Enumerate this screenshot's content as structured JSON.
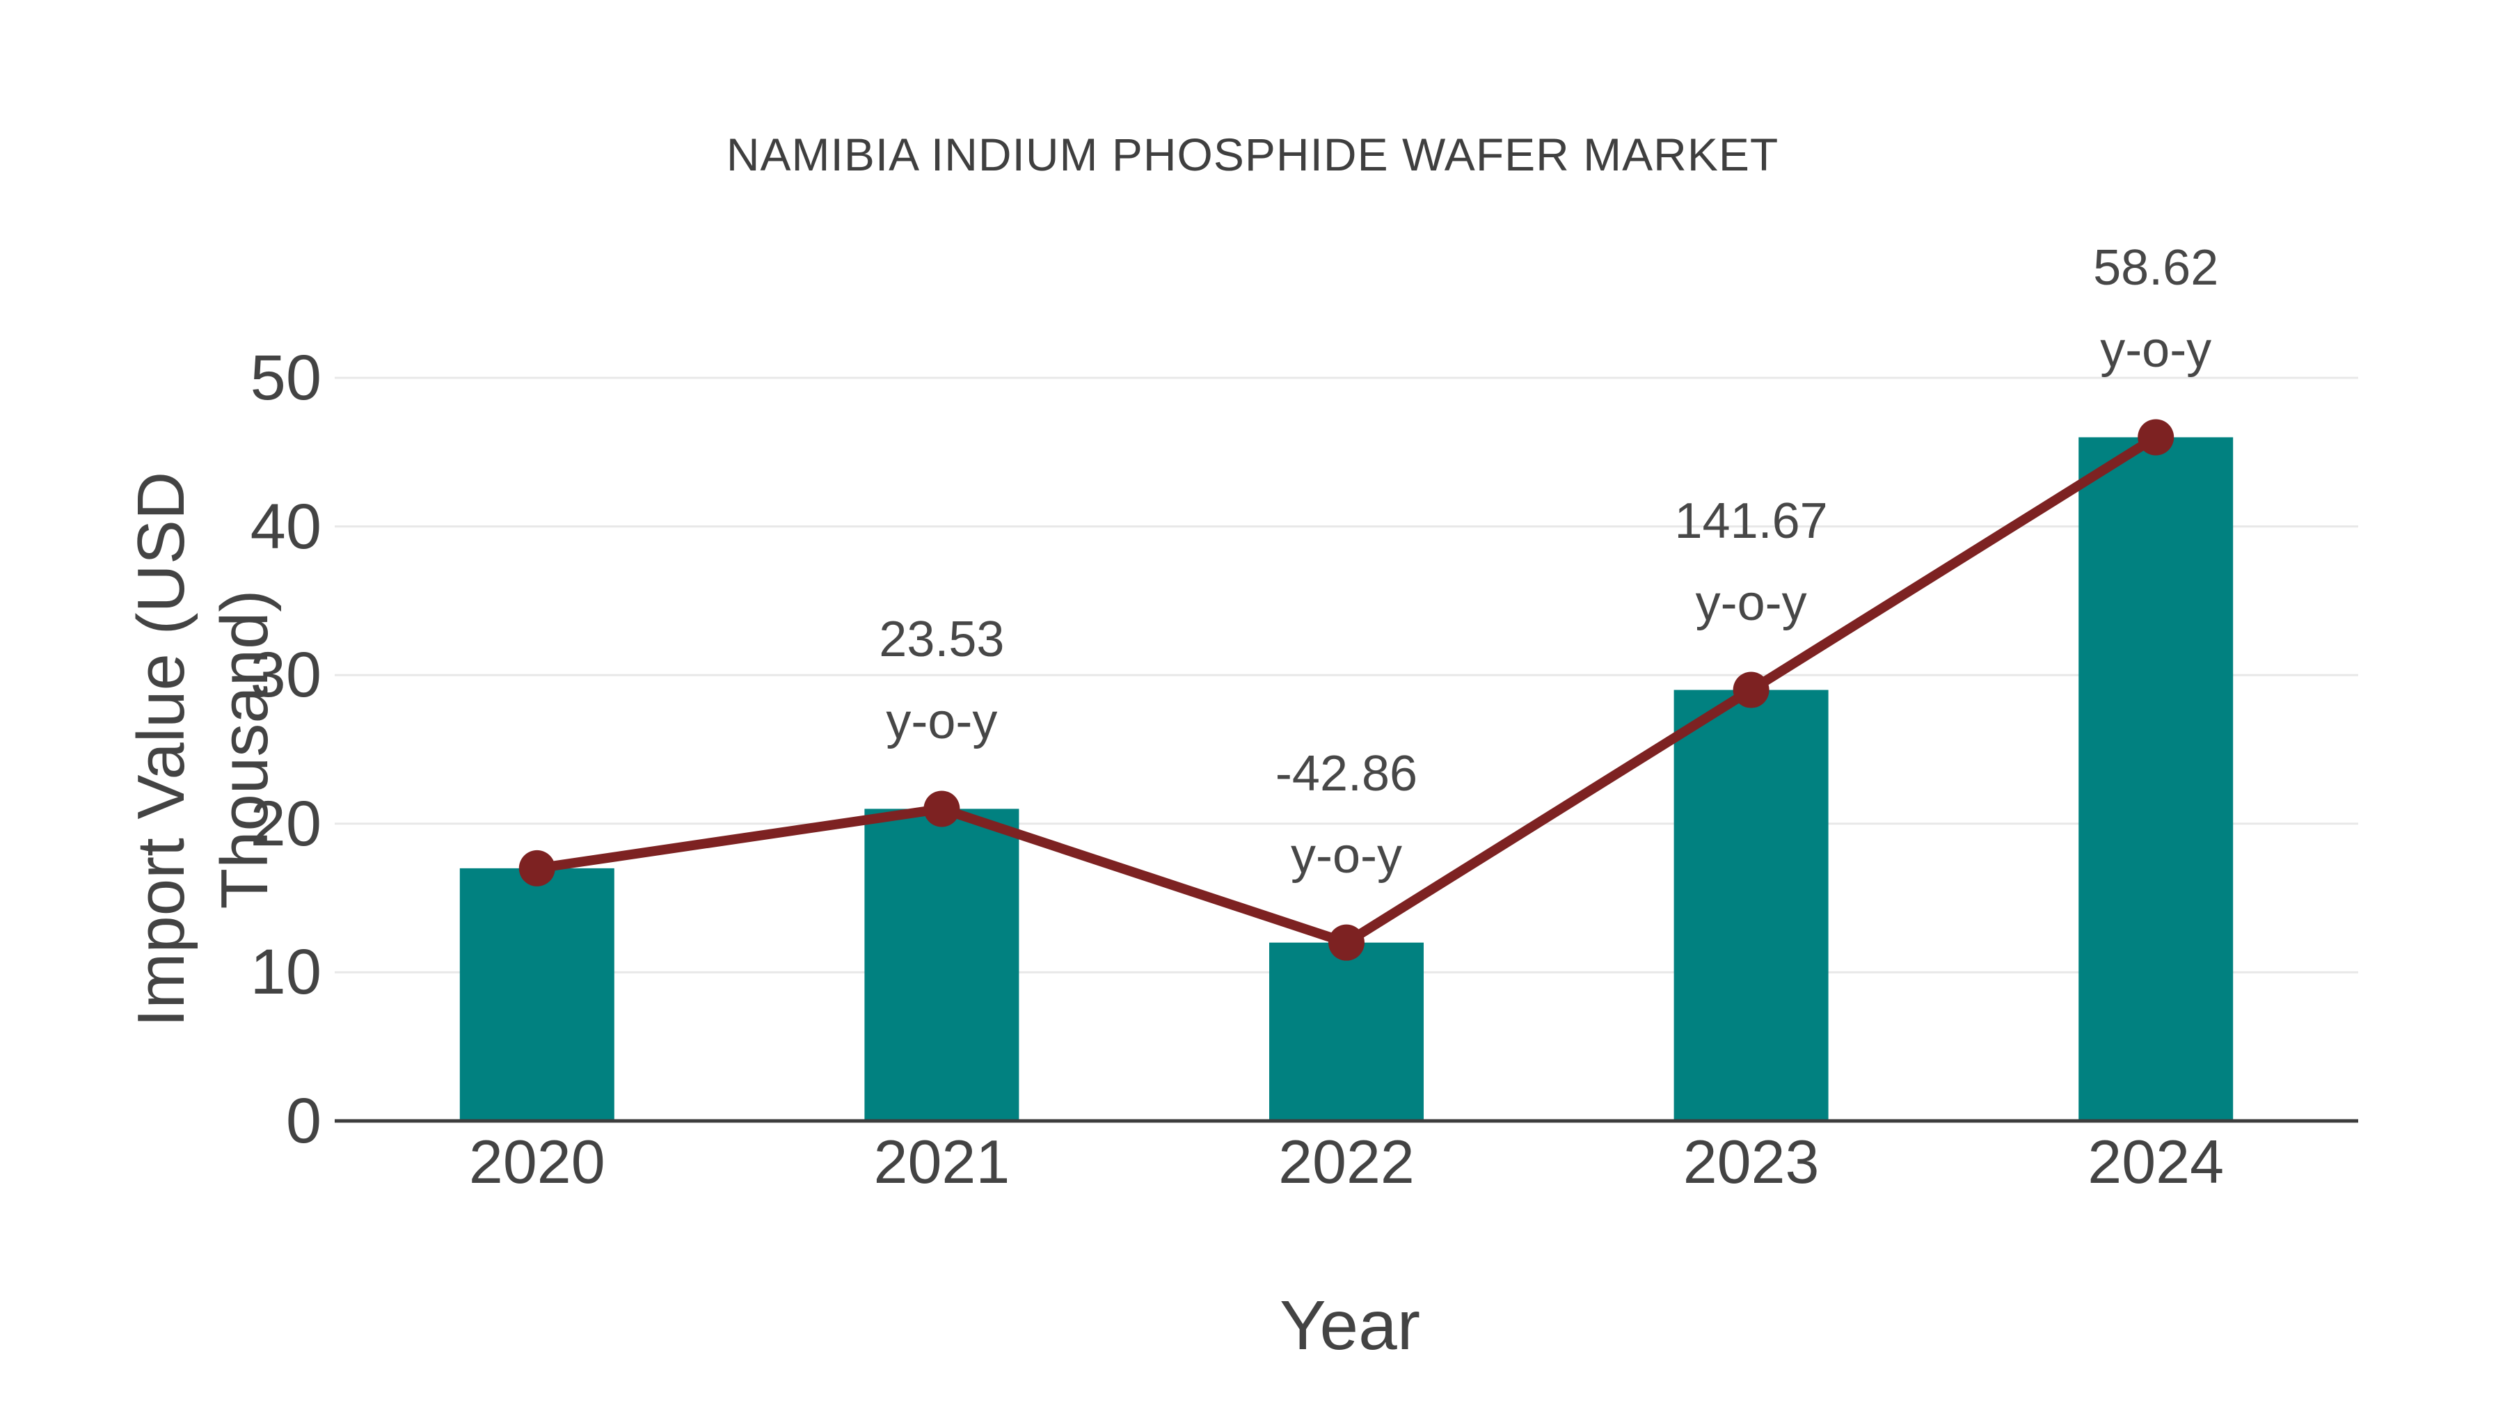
{
  "figure": {
    "background": "#ffffff"
  },
  "colors": {
    "bar": "#018180",
    "line": "#7d2222",
    "marker": "#7d2222",
    "grid": "#e8e8e8",
    "axis": "#3d3d3d",
    "text": "#434343",
    "title_text": "#3f3f3f"
  },
  "chart_data": {
    "type": "bar",
    "subtype": "bar-with-trend-line-overlay",
    "title": "NAMIBIA INDIUM PHOSPHIDE WAFER MARKET",
    "xlabel": "Year",
    "ylabel": "Import Value (USD Thousand)",
    "categories": [
      "2020",
      "2021",
      "2022",
      "2023",
      "2024"
    ],
    "series": [
      {
        "name": "Import Value (USD Thousand)",
        "type": "bar",
        "values": [
          17,
          21,
          12,
          29,
          46
        ]
      },
      {
        "name": "Trend line",
        "type": "line",
        "values": [
          17,
          21,
          12,
          29,
          46
        ]
      }
    ],
    "annotations": [
      {
        "category": "2021",
        "value": "23.53",
        "label": "y-o-y"
      },
      {
        "category": "2022",
        "value": "-42.86",
        "label": "y-o-y"
      },
      {
        "category": "2023",
        "value": "141.67",
        "label": "y-o-y"
      },
      {
        "category": "2024",
        "value": "58.62",
        "label": "y-o-y"
      }
    ],
    "ylim": [
      0,
      50
    ],
    "yticks": [
      0,
      10,
      20,
      30,
      40,
      50
    ],
    "grid": true,
    "legend": false
  }
}
